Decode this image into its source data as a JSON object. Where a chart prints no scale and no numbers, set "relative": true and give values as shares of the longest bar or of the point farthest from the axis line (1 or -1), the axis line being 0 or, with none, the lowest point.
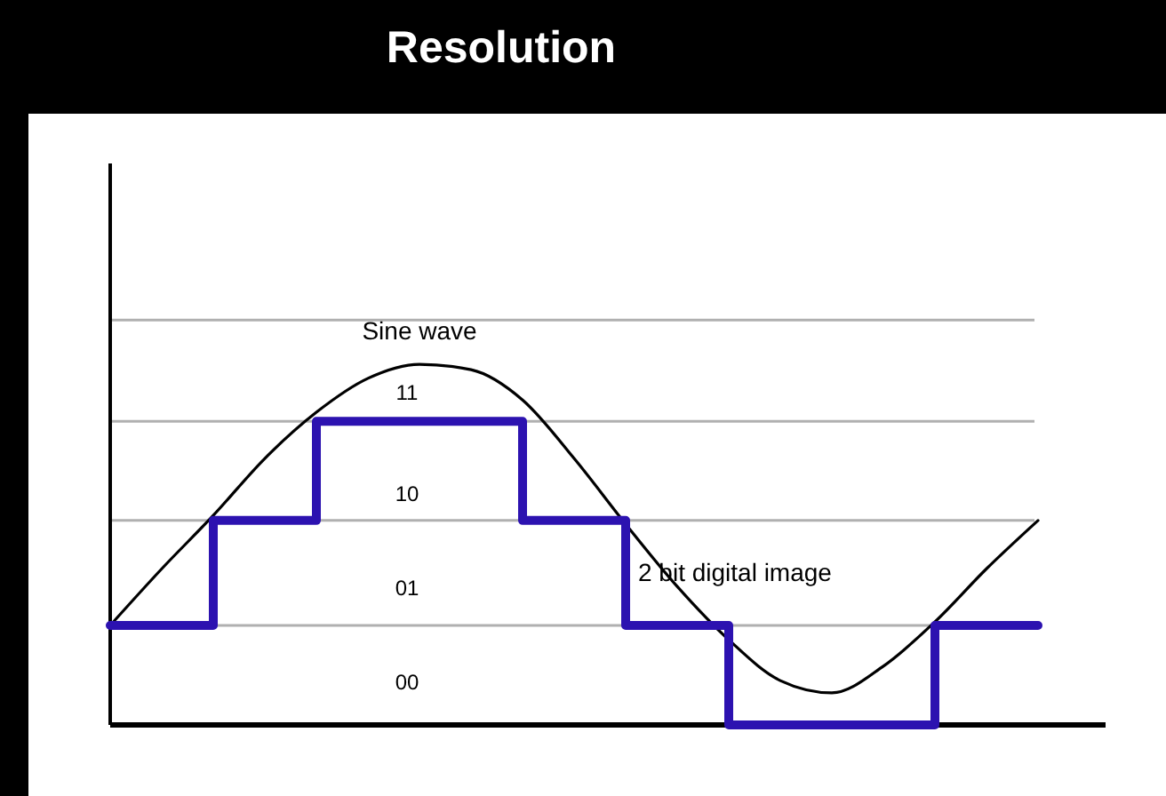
{
  "chart_data": {
    "type": "line",
    "title": "Resolution",
    "relative": true,
    "categories": [
      null,
      null,
      null,
      null,
      null,
      null,
      null,
      null,
      null,
      null,
      null,
      null,
      null,
      null,
      null,
      null,
      null,
      null,
      null
    ],
    "series": [
      {
        "name": "Sine wave",
        "color": "#000000",
        "values": [
          0.276,
          0.433,
          0.581,
          0.739,
          0.867,
          0.961,
          1,
          0.985,
          0.901,
          0.739,
          0.557,
          0.384,
          0.236,
          0.123,
          0.089,
          0.163,
          0.286,
          0.433,
          0.567
        ]
      },
      {
        "name": "2 bit digital image",
        "type": "step",
        "color": "#2c12b0",
        "values": [
          0.276,
          0.276,
          0.567,
          0.567,
          0.842,
          0.842,
          0.842,
          0.842,
          0.567,
          0.567,
          0.276,
          0.276,
          0,
          0,
          0,
          0,
          0.276,
          0.276,
          0.276
        ]
      }
    ],
    "ref_lines": [
      {
        "axis": "y",
        "value": 0.276,
        "color": "#b0b0b0"
      },
      {
        "axis": "y",
        "value": 0.567,
        "color": "#b0b0b0"
      },
      {
        "axis": "y",
        "value": 0.842,
        "color": "#b0b0b0"
      },
      {
        "axis": "y",
        "value": 1.123,
        "color": "#b0b0b0"
      }
    ],
    "annotations": [
      "11",
      "10",
      "01",
      "00"
    ]
  }
}
